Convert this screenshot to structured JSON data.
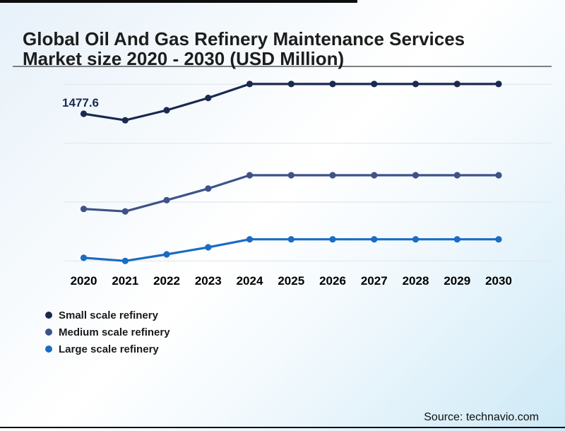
{
  "header": {
    "title": "Global Oil And Gas Refinery Maintenance Services Market size 2020 - 2030 (USD Million)"
  },
  "chart_data": {
    "type": "line",
    "title": "Global Oil And Gas Refinery Maintenance Services Market size 2020 - 2030 (USD Million)",
    "x": [
      2020,
      2021,
      2022,
      2023,
      2024,
      2025,
      2026,
      2027,
      2028,
      2029,
      2030
    ],
    "xlabel": "",
    "ylabel": "USD Million",
    "y_axis_visible": false,
    "grid": "horizontal",
    "gridline_color": "#e3e7ec",
    "legend_position": "bottom-left",
    "series": [
      {
        "name": "Small scale refinery",
        "color": "#1a2950",
        "values": [
          1477.6,
          1412,
          1513,
          1636,
          1776,
          1776,
          1776,
          1776,
          1776,
          1776,
          1776
        ]
      },
      {
        "name": "Medium scale refinery",
        "color": "#3e5289",
        "values": [
          522,
          497,
          610,
          726,
          860,
          860,
          860,
          860,
          860,
          860,
          860
        ]
      },
      {
        "name": "Large scale refinery",
        "color": "#1a6cc4",
        "values": [
          31,
          0,
          66,
          137,
          217,
          217,
          217,
          217,
          217,
          217,
          217
        ]
      }
    ],
    "data_labels": [
      {
        "series": "Small scale refinery",
        "x": 2020,
        "label": "1477.6"
      }
    ]
  },
  "source": {
    "text": "Source: technavio.com"
  }
}
